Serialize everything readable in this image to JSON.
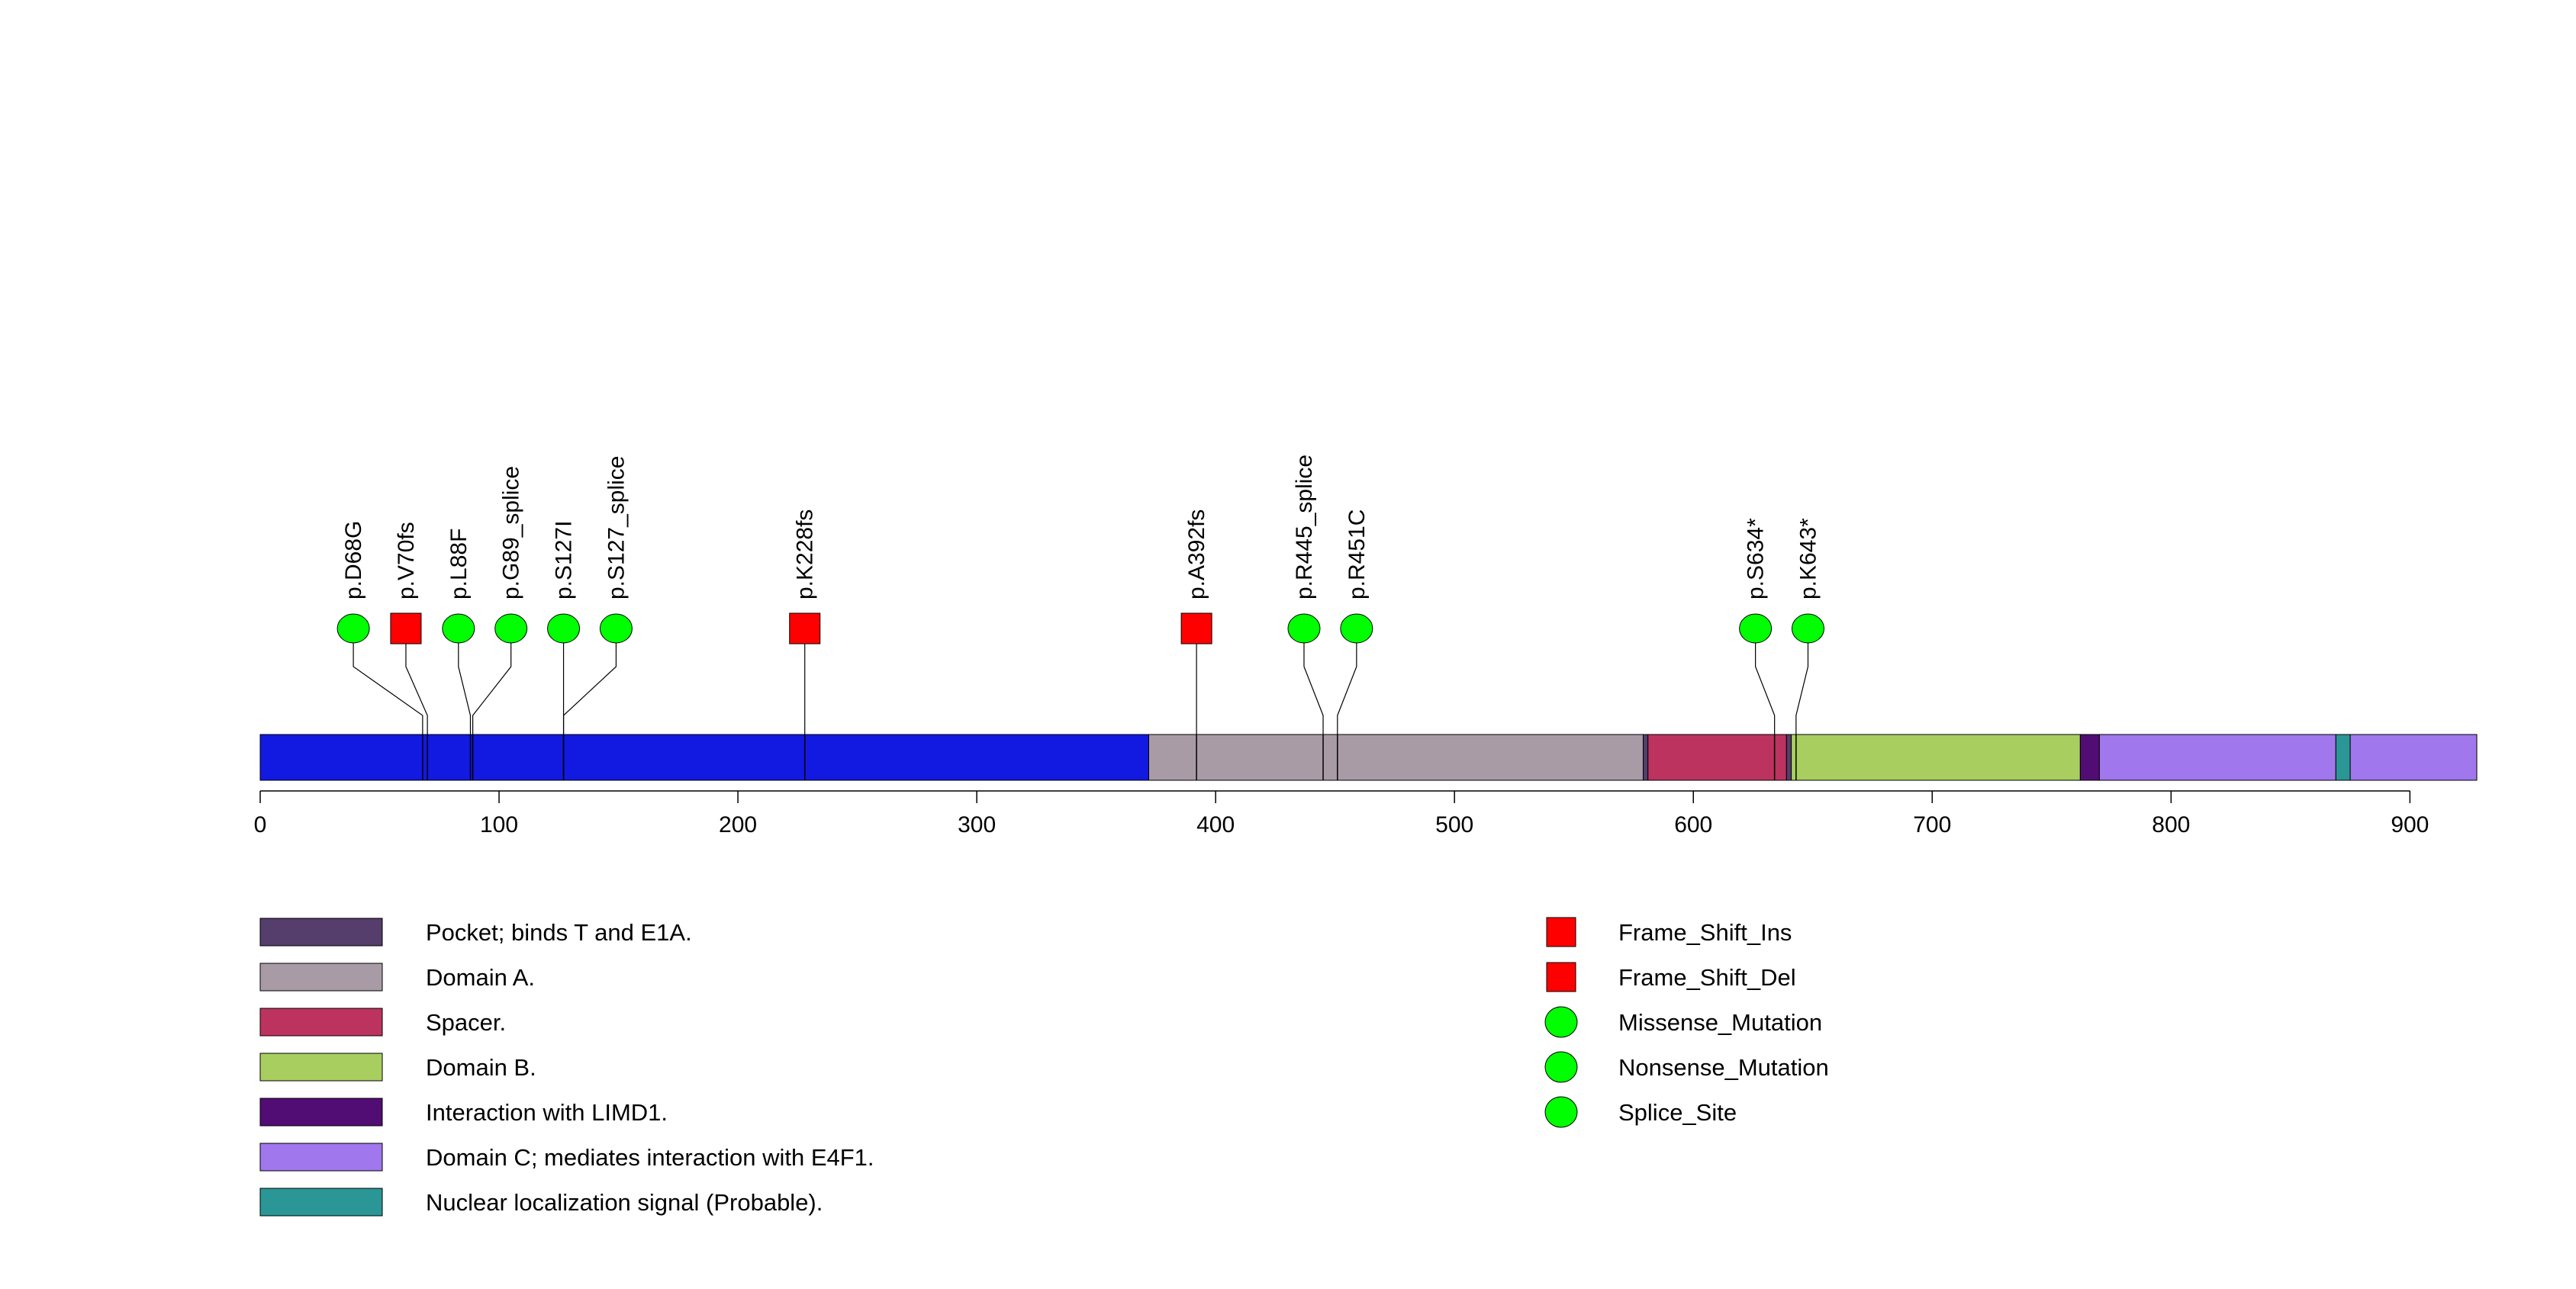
{
  "chart_data": {
    "type": "lollipop",
    "protein_length": 928,
    "axis": {
      "xlim": [
        0,
        928
      ],
      "ticks": [
        0,
        100,
        200,
        300,
        400,
        500,
        600,
        700,
        800,
        900
      ]
    },
    "backbone_color": "#1219e0",
    "domains": [
      {
        "name": "Domain A.",
        "start": 372,
        "end": 579,
        "color": "#a89ba6"
      },
      {
        "name": "Pocket; binds T and E1A.",
        "start": 579,
        "end": 581,
        "color": "#553d6c"
      },
      {
        "name": "Spacer.",
        "start": 581,
        "end": 639,
        "color": "#bc3360"
      },
      {
        "name": "Pocket; binds T and E1A.",
        "start": 639,
        "end": 641,
        "color": "#553d6c"
      },
      {
        "name": "Domain B.",
        "start": 641,
        "end": 762,
        "color": "#a8ce60"
      },
      {
        "name": "Interaction with LIMD1.",
        "start": 762,
        "end": 770,
        "color": "#520d74"
      },
      {
        "name": "Domain C; mediates interaction with E4F1.",
        "start": 770,
        "end": 869,
        "color": "#a077ec"
      },
      {
        "name": "Nuclear localization signal (Probable).",
        "start": 869,
        "end": 875,
        "color": "#2a9696"
      },
      {
        "name": "Domain C; mediates interaction with E4F1.",
        "start": 875,
        "end": 928,
        "color": "#a077ec"
      }
    ],
    "mutations": [
      {
        "label": "p.D68G",
        "position": 68,
        "symbol_position": 39,
        "type": "Missense_Mutation",
        "shape": "circle"
      },
      {
        "label": "p.V70fs",
        "position": 70,
        "symbol_position": 61,
        "type": "Frame_Shift_Del",
        "shape": "square"
      },
      {
        "label": "p.L88F",
        "position": 88,
        "symbol_position": 83,
        "type": "Missense_Mutation",
        "shape": "circle"
      },
      {
        "label": "p.G89_splice",
        "position": 89,
        "symbol_position": 105,
        "type": "Splice_Site",
        "shape": "circle"
      },
      {
        "label": "p.S127I",
        "position": 127,
        "symbol_position": 127,
        "type": "Missense_Mutation",
        "shape": "circle"
      },
      {
        "label": "p.S127_splice",
        "position": 127,
        "symbol_position": 149,
        "type": "Splice_Site",
        "shape": "circle"
      },
      {
        "label": "p.K228fs",
        "position": 228,
        "symbol_position": 228,
        "type": "Frame_Shift_Del",
        "shape": "square"
      },
      {
        "label": "p.A392fs",
        "position": 392,
        "symbol_position": 392,
        "type": "Frame_Shift_Del",
        "shape": "square"
      },
      {
        "label": "p.R445_splice",
        "position": 445,
        "symbol_position": 437,
        "type": "Splice_Site",
        "shape": "circle"
      },
      {
        "label": "p.R451C",
        "position": 451,
        "symbol_position": 459,
        "type": "Missense_Mutation",
        "shape": "circle"
      },
      {
        "label": "p.S634*",
        "position": 634,
        "symbol_position": 626,
        "type": "Nonsense_Mutation",
        "shape": "circle"
      },
      {
        "label": "p.K643*",
        "position": 643,
        "symbol_position": 648,
        "type": "Nonsense_Mutation",
        "shape": "circle"
      }
    ],
    "domain_legend": [
      {
        "name": "Pocket; binds T and E1A.",
        "color": "#553d6c"
      },
      {
        "name": "Domain A.",
        "color": "#a89ba6"
      },
      {
        "name": "Spacer.",
        "color": "#bc3360"
      },
      {
        "name": "Domain B.",
        "color": "#a8ce60"
      },
      {
        "name": "Interaction with LIMD1.",
        "color": "#520d74"
      },
      {
        "name": "Domain C; mediates interaction with E4F1.",
        "color": "#a077ec"
      },
      {
        "name": "Nuclear localization signal (Probable).",
        "color": "#2a9696"
      }
    ],
    "mutation_legend": [
      {
        "name": "Frame_Shift_Ins",
        "shape": "square",
        "color": "#ff0000"
      },
      {
        "name": "Frame_Shift_Del",
        "shape": "square",
        "color": "#ff0000"
      },
      {
        "name": "Missense_Mutation",
        "shape": "circle",
        "color": "#00ff00"
      },
      {
        "name": "Nonsense_Mutation",
        "shape": "circle",
        "color": "#00ff00"
      },
      {
        "name": "Splice_Site",
        "shape": "circle",
        "color": "#00ff00"
      }
    ]
  }
}
